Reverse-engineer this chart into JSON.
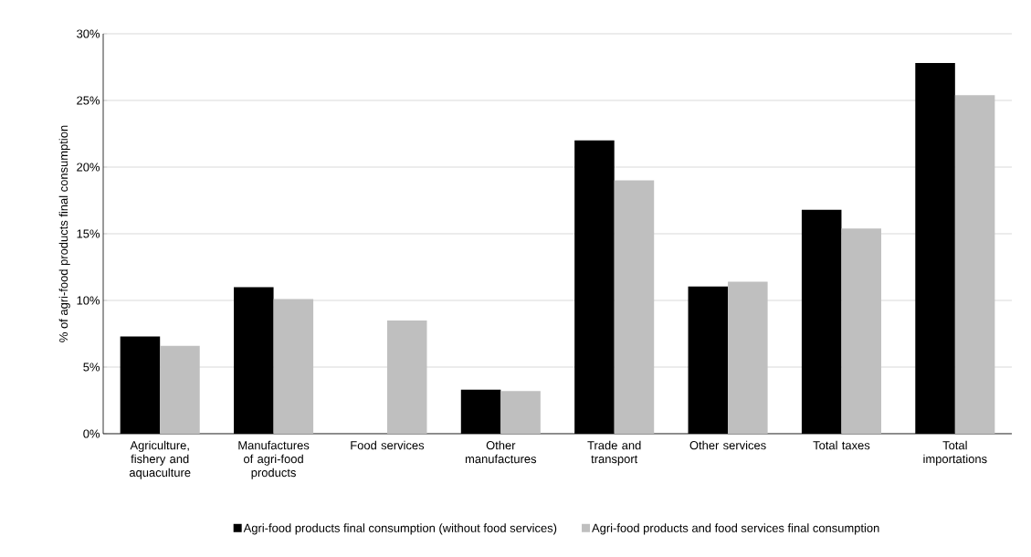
{
  "chart_data": {
    "type": "bar",
    "ylabel": "% of agri-food products final consumption",
    "categories": [
      "Agriculture, fishery and aquaculture",
      "Manufactures of agri-food products",
      "Food services",
      "Other manufactures",
      "Trade and transport",
      "Other services",
      "Total taxes",
      "Total importations"
    ],
    "series": [
      {
        "name": "Agri-food products final consumption (without food services)",
        "color": "#000000",
        "values": [
          7.3,
          11.0,
          null,
          3.3,
          22.0,
          11.05,
          16.8,
          27.8
        ]
      },
      {
        "name": "Agri-food products and food services final consumption",
        "color": "#bfbfbf",
        "values": [
          6.6,
          10.1,
          8.5,
          3.2,
          19.0,
          11.4,
          15.4,
          25.4
        ]
      }
    ],
    "ylim": [
      0,
      30
    ],
    "yticks": [
      {
        "value": 0,
        "label": "0%"
      },
      {
        "value": 5,
        "label": "5%"
      },
      {
        "value": 10,
        "label": "10%"
      },
      {
        "value": 15,
        "label": "15%"
      },
      {
        "value": 20,
        "label": "20%"
      },
      {
        "value": 25,
        "label": "25%"
      },
      {
        "value": 30,
        "label": "30%"
      }
    ],
    "grid": "y",
    "legend": "bottom"
  }
}
